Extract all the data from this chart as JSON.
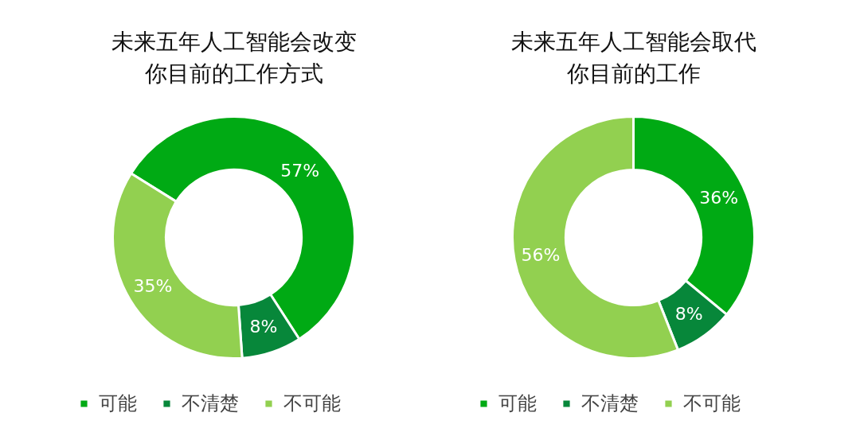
{
  "chart_data": [
    {
      "type": "donut",
      "title": "未来五年人工智能会改变你目前的工作方式",
      "categories": [
        "可能",
        "不清楚",
        "不可能"
      ],
      "values": [
        57,
        8,
        35
      ],
      "colors": [
        "#00aa14",
        "#07873a",
        "#92d050"
      ],
      "value_labels": [
        "57%",
        "8%",
        "35%"
      ],
      "legend": "bottom"
    },
    {
      "type": "donut",
      "title": "未来五年人工智能会取代你目前的工作",
      "categories": [
        "可能",
        "不清楚",
        "不可能"
      ],
      "values": [
        36,
        8,
        56
      ],
      "colors": [
        "#00aa14",
        "#07873a",
        "#92d050"
      ],
      "value_labels": [
        "36%",
        "8%",
        "56%"
      ],
      "legend": "bottom"
    }
  ]
}
